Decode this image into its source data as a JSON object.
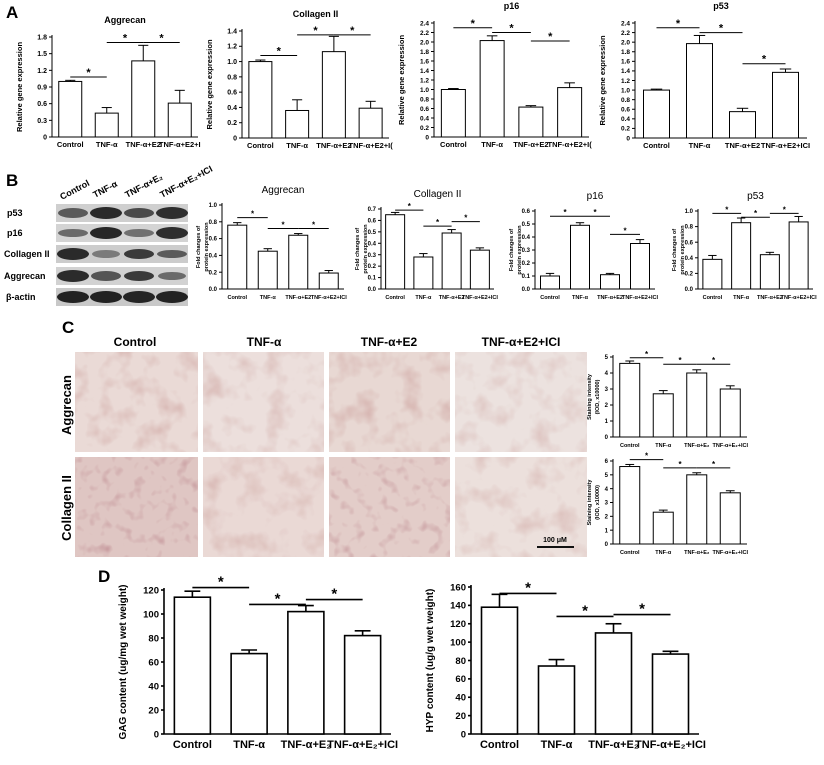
{
  "panel_labels": [
    "A",
    "B",
    "C",
    "D"
  ],
  "panel_c": {
    "columns": [
      "Control",
      "TNF-α",
      "TNF-α+E2",
      "TNF-α+E2+ICI"
    ],
    "rows": [
      "Aggrecan",
      "Collagen II"
    ],
    "scale_bar": "100 μM"
  },
  "western_blot": {
    "lanes": [
      "Control",
      "TNF-α",
      "TNF-α+E₂",
      "TNF-α+E₂+ICI"
    ],
    "bands": [
      "p53",
      "p16",
      "Collagen II",
      "Aggrecan",
      "β-actin"
    ]
  },
  "chart_data": [
    {
      "id": "a1",
      "type": "bar",
      "title": "Aggrecan",
      "xlabel": "",
      "ylabel": "Relative gene expression",
      "categories": [
        "Control",
        "TNF-α",
        "TNF-α+E2",
        "TNF-α+E2+I"
      ],
      "values": [
        1.0,
        0.43,
        1.37,
        0.61
      ],
      "errors": [
        0.02,
        0.1,
        0.28,
        0.23
      ],
      "ylim": [
        0,
        1.8
      ],
      "yticks": [
        "0",
        "0.3",
        "0.6",
        "0.9",
        "1.2",
        "1.5",
        "1.8"
      ],
      "significance": [
        [
          0,
          1,
          1.08,
          "*"
        ],
        [
          1,
          2,
          1.7,
          "*"
        ],
        [
          2,
          3,
          1.7,
          "*"
        ]
      ]
    },
    {
      "id": "a2",
      "type": "bar",
      "title": "Collagen II",
      "xlabel": "",
      "ylabel": "Relative gene expression",
      "categories": [
        "Control",
        "TNF-α",
        "TNF-α+E2",
        "TNF-α+E2+I("
      ],
      "values": [
        1.0,
        0.36,
        1.13,
        0.39
      ],
      "errors": [
        0.02,
        0.14,
        0.2,
        0.09
      ],
      "ylim": [
        0,
        1.4
      ],
      "yticks": [
        "0",
        "0.2",
        "0.4",
        "0.6",
        "0.8",
        "1.0",
        "1.2",
        "1.4"
      ],
      "significance": [
        [
          0,
          1,
          1.08,
          "*"
        ],
        [
          1,
          2,
          1.35,
          "*"
        ],
        [
          2,
          3,
          1.35,
          "*"
        ]
      ]
    },
    {
      "id": "a3",
      "type": "bar",
      "title": "p16",
      "xlabel": "",
      "ylabel": "Relative gene expression",
      "categories": [
        "Control",
        "TNF-α",
        "TNF-α+E2",
        "TNF-α+E2+I("
      ],
      "values": [
        1.0,
        2.03,
        0.63,
        1.04
      ],
      "errors": [
        0.02,
        0.1,
        0.03,
        0.1
      ],
      "ylim": [
        0,
        2.4
      ],
      "yticks": [
        "0",
        "0.2",
        "0.4",
        "0.6",
        "0.8",
        "1.0",
        "1.2",
        "1.4",
        "1.6",
        "1.8",
        "2.0",
        "2.2",
        "2.4"
      ],
      "significance": [
        [
          0,
          1,
          2.3,
          "*"
        ],
        [
          1,
          2,
          2.2,
          "*"
        ],
        [
          2,
          3,
          2.02,
          "*"
        ]
      ]
    },
    {
      "id": "a4",
      "type": "bar",
      "title": "p53",
      "xlabel": "",
      "ylabel": "Relative gene expression",
      "categories": [
        "Control",
        "TNF-α",
        "TNF-α+E2",
        "TNF-α+E2+ICI"
      ],
      "values": [
        1.0,
        1.97,
        0.55,
        1.37
      ],
      "errors": [
        0.02,
        0.17,
        0.07,
        0.07
      ],
      "ylim": [
        0,
        2.4
      ],
      "yticks": [
        "0",
        "0.2",
        "0.4",
        "0.6",
        "0.8",
        "1.0",
        "1.2",
        "1.4",
        "1.6",
        "1.8",
        "2.0",
        "2.2",
        "2.4"
      ],
      "significance": [
        [
          0,
          1,
          2.3,
          "*"
        ],
        [
          1,
          2,
          2.2,
          "*"
        ],
        [
          2,
          3,
          1.55,
          "*"
        ]
      ]
    },
    {
      "id": "b1",
      "type": "bar",
      "title": "Aggrecan",
      "xlabel": "",
      "ylabel": "Fold changes of protein expression",
      "categories": [
        "Control",
        "TNF-α",
        "TNF-α+E2",
        "TNF-α+E2+ICI"
      ],
      "values": [
        0.76,
        0.45,
        0.64,
        0.19
      ],
      "errors": [
        0.03,
        0.03,
        0.02,
        0.03
      ],
      "ylim": [
        0,
        1.0
      ],
      "yticks": [
        "0.0",
        "0.2",
        "0.4",
        "0.6",
        "0.8",
        "1.0"
      ],
      "significance": [
        [
          0,
          1,
          0.85,
          "*"
        ],
        [
          1,
          2,
          0.72,
          "*"
        ],
        [
          2,
          3,
          0.72,
          "*"
        ]
      ]
    },
    {
      "id": "b2",
      "type": "bar",
      "title": "Collagen II",
      "xlabel": "",
      "ylabel": "Fold changes of protein expression",
      "categories": [
        "Control",
        "TNF-α",
        "TNF-α+E2",
        "TNF-α+E2+ICI"
      ],
      "values": [
        0.65,
        0.28,
        0.49,
        0.34
      ],
      "errors": [
        0.02,
        0.03,
        0.03,
        0.02
      ],
      "ylim": [
        0,
        0.7
      ],
      "yticks": [
        "0.0",
        "0.1",
        "0.2",
        "0.3",
        "0.4",
        "0.5",
        "0.6",
        "0.7"
      ],
      "significance": [
        [
          0,
          1,
          0.69,
          "*"
        ],
        [
          1,
          2,
          0.55,
          "*"
        ],
        [
          2,
          3,
          0.59,
          "*"
        ]
      ]
    },
    {
      "id": "b3",
      "type": "bar",
      "title": "p16",
      "xlabel": "",
      "ylabel": "Fold changes of protein expression",
      "categories": [
        "Control",
        "TNF-α",
        "TNF-α+E2",
        "TNF-α+E2+ICI"
      ],
      "values": [
        0.1,
        0.49,
        0.11,
        0.35
      ],
      "errors": [
        0.02,
        0.02,
        0.01,
        0.03
      ],
      "ylim": [
        0,
        0.6
      ],
      "yticks": [
        "0.0",
        "0.1",
        "0.2",
        "0.3",
        "0.4",
        "0.5",
        "0.6"
      ],
      "significance": [
        [
          0,
          1,
          0.56,
          "*"
        ],
        [
          1,
          2,
          0.56,
          "*"
        ],
        [
          2,
          3,
          0.42,
          "*"
        ]
      ]
    },
    {
      "id": "b4",
      "type": "bar",
      "title": "p53",
      "xlabel": "",
      "ylabel": "Fold changes of protein expression",
      "categories": [
        "Control",
        "TNF-α",
        "TNF-α+E2",
        "TNF-α+E2+ICI"
      ],
      "values": [
        0.38,
        0.85,
        0.44,
        0.86
      ],
      "errors": [
        0.05,
        0.06,
        0.03,
        0.07
      ],
      "ylim": [
        0,
        1.0
      ],
      "yticks": [
        "0.0",
        "0.2",
        "0.4",
        "0.6",
        "0.8",
        "1.0"
      ],
      "significance": [
        [
          0,
          1,
          0.97,
          "*"
        ],
        [
          1,
          2,
          0.92,
          "*"
        ],
        [
          2,
          3,
          0.97,
          "*"
        ]
      ]
    },
    {
      "id": "c1",
      "type": "bar",
      "title": "",
      "xlabel": "",
      "ylabel": "Staining intensity (IOD, x10000)",
      "categories": [
        "Control",
        "TNF-α",
        "TNF-α+E₂",
        "TNF-α+E₂+ICI"
      ],
      "values": [
        4.6,
        2.7,
        4.0,
        3.0
      ],
      "errors": [
        0.15,
        0.2,
        0.2,
        0.2
      ],
      "ylim": [
        0,
        5
      ],
      "yticks": [
        "0",
        "1",
        "2",
        "3",
        "4",
        "5"
      ],
      "significance": [
        [
          0,
          1,
          4.95,
          "*"
        ],
        [
          1,
          2,
          4.55,
          "*"
        ],
        [
          2,
          3,
          4.55,
          "*"
        ]
      ]
    },
    {
      "id": "c2",
      "type": "bar",
      "title": "",
      "xlabel": "",
      "ylabel": "Staining intensity (IOD, x10000)",
      "categories": [
        "Control",
        "TNF-α",
        "TNF-α+E₂",
        "TNF-α+E₂+ICI"
      ],
      "values": [
        5.6,
        2.3,
        5.0,
        3.7
      ],
      "errors": [
        0.15,
        0.15,
        0.15,
        0.15
      ],
      "ylim": [
        0,
        6
      ],
      "yticks": [
        "0",
        "1",
        "2",
        "3",
        "4",
        "5",
        "6"
      ],
      "significance": [
        [
          0,
          1,
          6.1,
          "*"
        ],
        [
          1,
          2,
          5.5,
          "*"
        ],
        [
          2,
          3,
          5.5,
          "*"
        ]
      ]
    },
    {
      "id": "d1",
      "type": "bar",
      "title": "",
      "xlabel": "",
      "ylabel": "GAG content (ug/mg wet weight)",
      "categories": [
        "Control",
        "TNF-α",
        "TNF-α+E₂",
        "TNF-α+E₂+ICI"
      ],
      "values": [
        114,
        67,
        102,
        82
      ],
      "errors": [
        5,
        3,
        5,
        4
      ],
      "ylim": [
        0,
        120
      ],
      "yticks": [
        "0",
        "20",
        "40",
        "60",
        "80",
        "100",
        "120"
      ],
      "significance": [
        [
          0,
          1,
          122,
          "*"
        ],
        [
          1,
          2,
          108,
          "*"
        ],
        [
          2,
          3,
          112,
          "*"
        ]
      ]
    },
    {
      "id": "d2",
      "type": "bar",
      "title": "",
      "xlabel": "",
      "ylabel": "HYP content (ug/g wet weight)",
      "categories": [
        "Control",
        "TNF-α",
        "TNF-α+E₂",
        "TNF-α+E₂+ICI"
      ],
      "values": [
        138,
        74,
        110,
        87
      ],
      "errors": [
        14,
        7,
        10,
        3
      ],
      "ylim": [
        0,
        160
      ],
      "yticks": [
        "0",
        "20",
        "40",
        "60",
        "80",
        "100",
        "120",
        "140",
        "160"
      ],
      "significance": [
        [
          0,
          1,
          153,
          "*"
        ],
        [
          1,
          2,
          128,
          "*"
        ],
        [
          2,
          3,
          130,
          "*"
        ]
      ]
    }
  ]
}
